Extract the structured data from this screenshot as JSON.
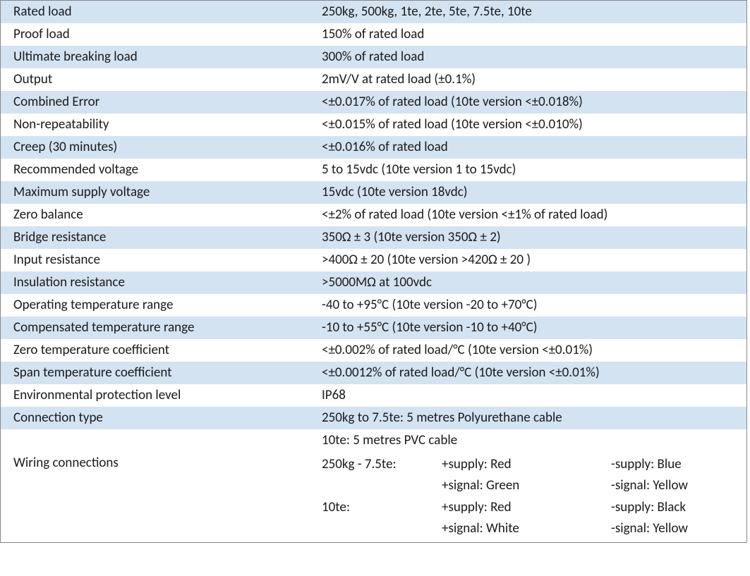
{
  "colors": {
    "shaded_bg": "#d4e3f1",
    "text": "#1a1a1a",
    "border": "#888888"
  },
  "rows": [
    {
      "label": "Rated load",
      "value": "250kg, 500kg, 1te, 2te, 5te, 7.5te, 10te",
      "shaded": true
    },
    {
      "label": "Proof load",
      "value": "150% of rated load",
      "shaded": false
    },
    {
      "label": "Ultimate breaking load",
      "value": "300% of rated load",
      "shaded": true
    },
    {
      "label": "Output",
      "value": "2mV/V at rated load (±0.1%)",
      "shaded": false
    },
    {
      "label": "Combined Error",
      "value": "<±0.017% of rated load (10te version <±0.018%)",
      "shaded": true
    },
    {
      "label": "Non-repeatability",
      "value": "<±0.015% of rated load (10te version <±0.010%)",
      "shaded": false
    },
    {
      "label": "Creep (30 minutes)",
      "value": "<±0.016% of rated load",
      "shaded": true
    },
    {
      "label": "Recommended voltage",
      "value": "5 to 15vdc (10te version 1 to 15vdc)",
      "shaded": false
    },
    {
      "label": "Maximum supply voltage",
      "value": "15vdc (10te version 18vdc)",
      "shaded": true
    },
    {
      "label": "Zero balance",
      "value": "<±2% of rated load (10te version <±1% of rated load)",
      "shaded": false
    },
    {
      "label": "Bridge resistance",
      "value": "350Ω ± 3 (10te version 350Ω ± 2)",
      "shaded": true
    },
    {
      "label": "Input resistance",
      "value": ">400Ω ± 20 (10te version >420Ω ± 20 )",
      "shaded": false
    },
    {
      "label": "Insulation resistance",
      "value": ">5000MΩ at 100vdc",
      "shaded": true
    },
    {
      "label": "Operating temperature range",
      "value": "-40 to +95°C (10te version -20 to +70°C)",
      "shaded": false
    },
    {
      "label": "Compensated temperature range",
      "value": "-10 to +55°C (10te version -10 to +40°C)",
      "shaded": true
    },
    {
      "label": "Zero temperature coefficient",
      "value": "<±0.002% of rated load/°C (10te version <±0.01%)",
      "shaded": false
    },
    {
      "label": "Span temperature coefficient",
      "value": "<±0.0012% of rated load/°C (10te version <±0.01%)",
      "shaded": true
    },
    {
      "label": "Environmental protection level",
      "value": "IP68",
      "shaded": false
    }
  ],
  "connection": {
    "label": "Connection type",
    "line1": "250kg to 7.5te: 5 metres Polyurethane cable",
    "line2": "10te: 5 metres PVC cable"
  },
  "wiring": {
    "label": "Wiring connections",
    "groups": [
      {
        "range": "250kg - 7.5te:",
        "lines": [
          {
            "a": "+supply: Red",
            "b": "-supply: Blue"
          },
          {
            "a": "+signal: Green",
            "b": "-signal: Yellow"
          }
        ]
      },
      {
        "range": "10te:",
        "lines": [
          {
            "a": "+supply: Red",
            "b": "-supply: Black"
          },
          {
            "a": "+signal: White",
            "b": "-signal: Yellow"
          }
        ]
      }
    ]
  }
}
